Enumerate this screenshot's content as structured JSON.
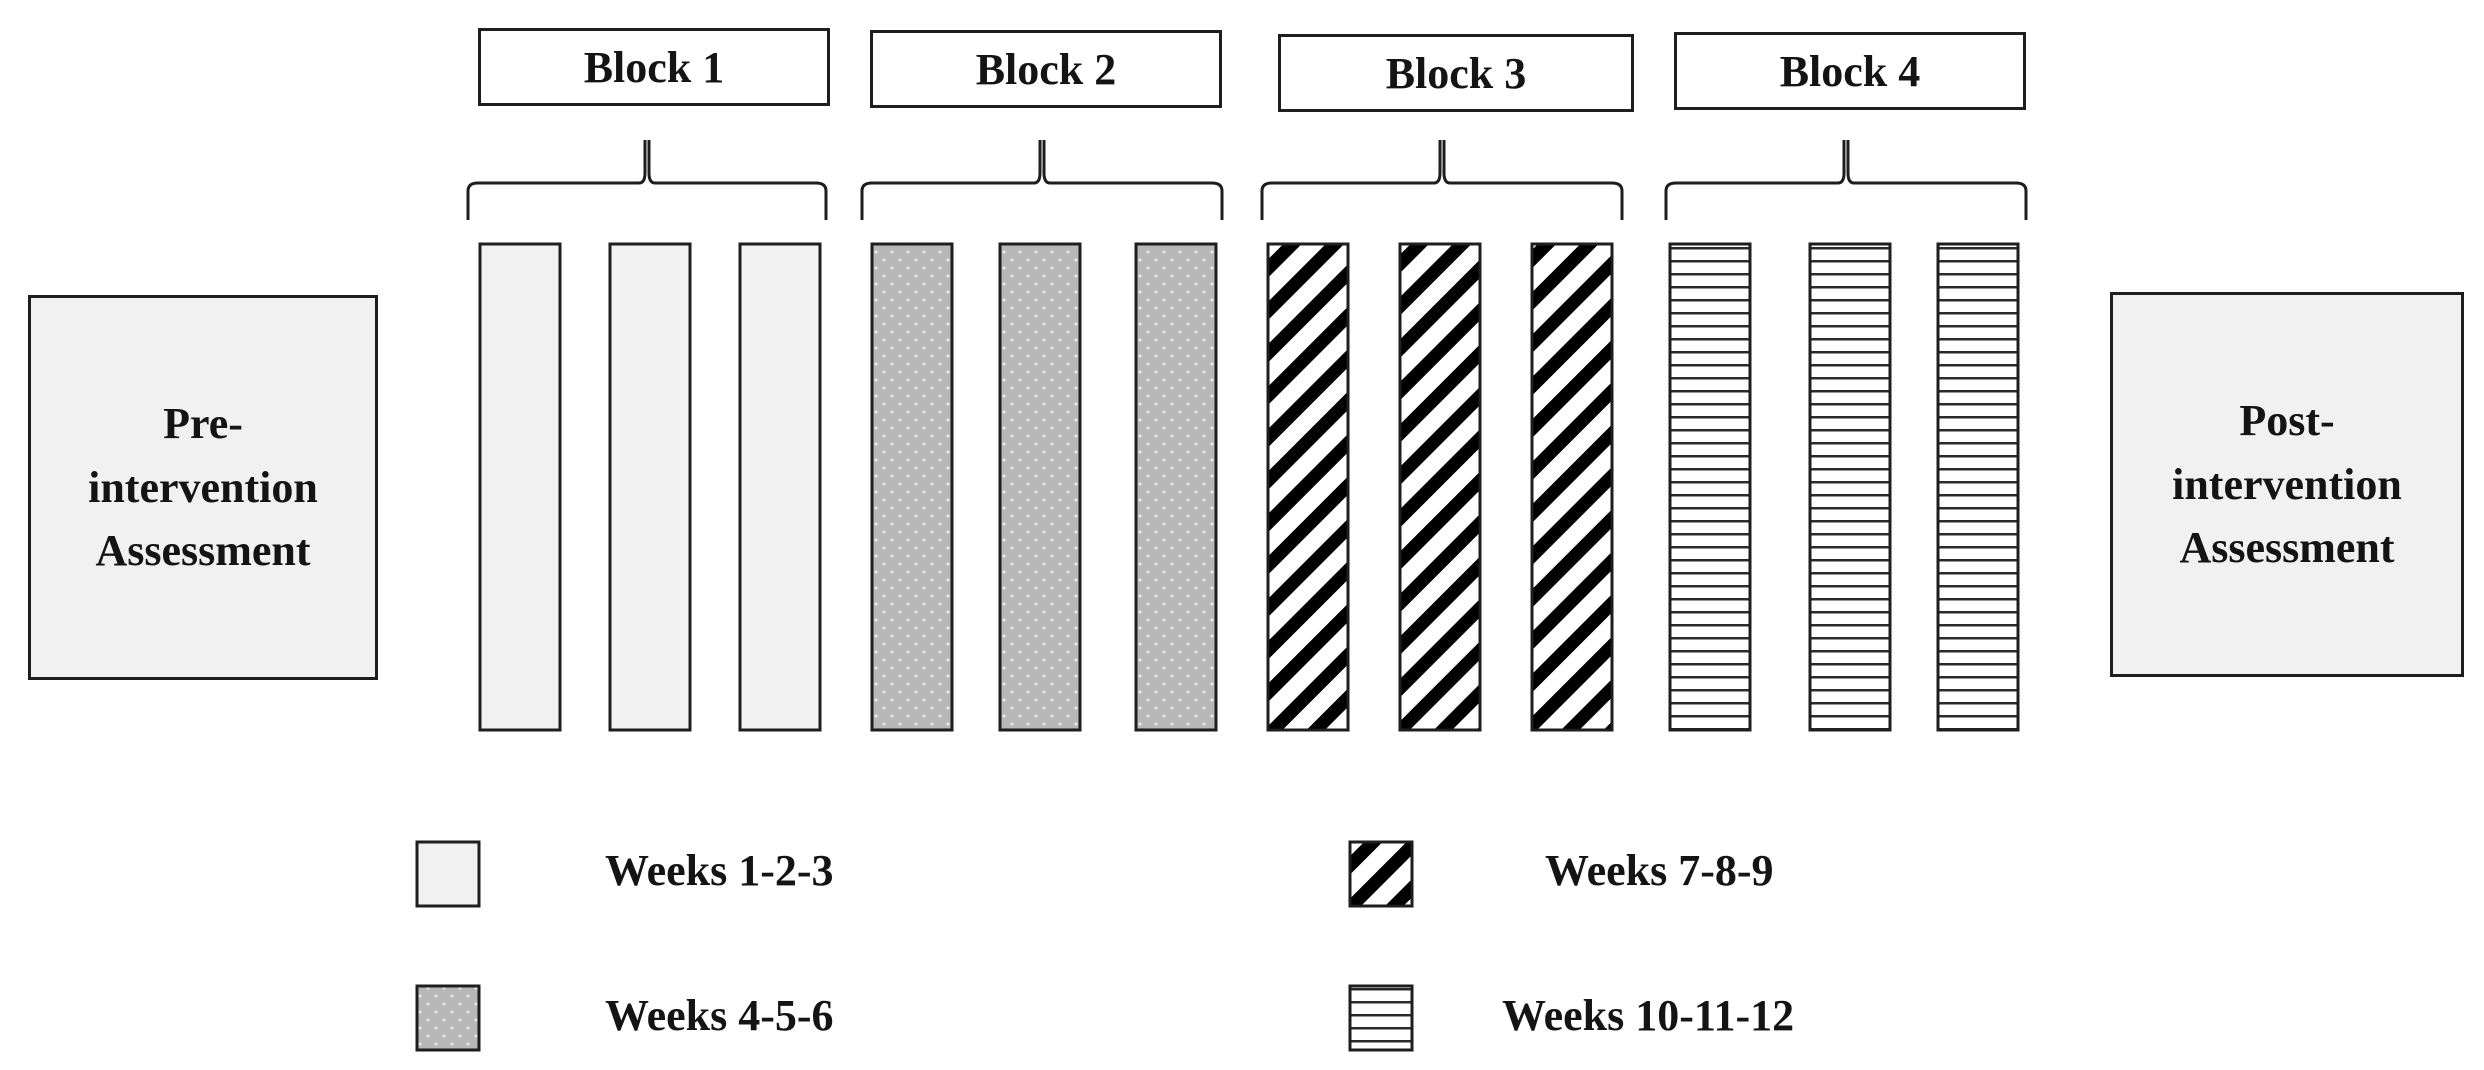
{
  "blocks": [
    {
      "label": "Block 1",
      "pattern": "plain"
    },
    {
      "label": "Block 2",
      "pattern": "dots"
    },
    {
      "label": "Block 3",
      "pattern": "diagonal"
    },
    {
      "label": "Block 4",
      "pattern": "horizontal"
    }
  ],
  "weeks_per_block": 3,
  "pre_assessment": {
    "lines": [
      "Pre-",
      "intervention",
      "Assessment"
    ]
  },
  "post_assessment": {
    "lines": [
      "Post-",
      "intervention",
      "Assessment"
    ]
  },
  "legend": [
    {
      "pattern": "plain",
      "label": "Weeks 1-2-3"
    },
    {
      "pattern": "dots",
      "label": "Weeks 4-5-6"
    },
    {
      "pattern": "diagonal",
      "label": "Weeks 7-8-9"
    },
    {
      "pattern": "horizontal",
      "label": "Weeks 10-11-12"
    }
  ],
  "colors": {
    "plain_fill": "#f1f1f1",
    "dots_fill": "#b7b7b7",
    "dot_color": "#e6e6e6",
    "stroke": "#1e1e1e",
    "assessment_fill": "#f1f1f1"
  }
}
